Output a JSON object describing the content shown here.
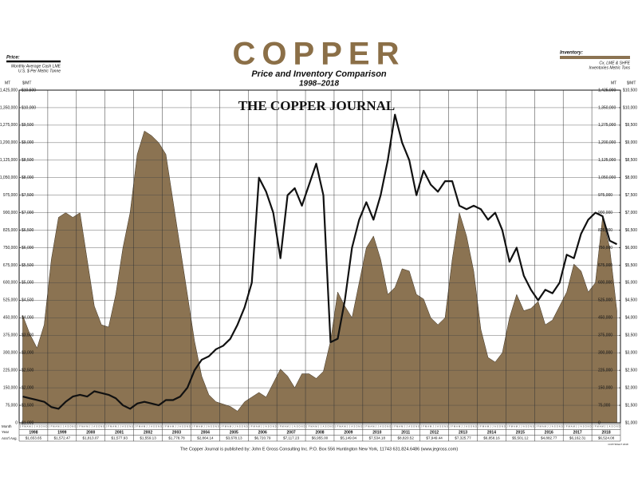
{
  "chart_data": {
    "type": "line",
    "title": "COPPER",
    "subtitle": "Price and Inventory Comparison",
    "period": "1998–2018",
    "watermark": "THE COPPER JOURNAL",
    "price_legend": [
      "Monthly Average Cash LME",
      "U.S. $ Per Metric Tonne"
    ],
    "inventory_legend": [
      "Cx, LME & SHFE",
      "Inventories Metric Tons"
    ],
    "y_axis_label": "MT",
    "y2_axis_label": "$/MT",
    "row_labels": [
      "Month",
      "Year",
      "Ann'l Avg."
    ],
    "footer": "The Copper Journal is published by: John E Gross Consulting Inc.  P.O. Box 556 Huntington New York, 11743  631.824.6486  (www.jegross.com)",
    "copyright": "COPYRIGHT 2018",
    "months": [
      "J",
      "F",
      "M",
      "A",
      "M",
      "J",
      "J",
      "A",
      "S",
      "O",
      "N",
      "D"
    ],
    "years": [
      "1998",
      "1999",
      "2000",
      "2001",
      "2002",
      "2003",
      "2004",
      "2005",
      "2006",
      "2007",
      "2008",
      "2009",
      "2010",
      "2011",
      "2012",
      "2013",
      "2014",
      "2015",
      "2016",
      "2017",
      "2018"
    ],
    "annual_avg": [
      "$1,653.65",
      "$1,572.47",
      "$1,813.07",
      "$1,577.93",
      "$1,559.13",
      "$1,778.78",
      "$2,864.14",
      "$3,678.13",
      "$6,720.79",
      "$7,117.23",
      "$6,955.00",
      "$5,149.04",
      "$7,534.18",
      "$8,820.52",
      "$7,949.44",
      "$7,325.77",
      "$6,858.16",
      "$5,501.12",
      "$4,882.77",
      "$6,162.31",
      "$6,524.08"
    ],
    "xlim": [
      1998,
      2019
    ],
    "x": [
      1998.125,
      1998.375,
      1998.625,
      1998.875,
      1999.125,
      1999.375,
      1999.625,
      1999.875,
      2000.125,
      2000.375,
      2000.625,
      2000.875,
      2001.125,
      2001.375,
      2001.625,
      2001.875,
      2002.125,
      2002.375,
      2002.625,
      2002.875,
      2003.125,
      2003.375,
      2003.625,
      2003.875,
      2004.125,
      2004.375,
      2004.625,
      2004.875,
      2005.125,
      2005.375,
      2005.625,
      2005.875,
      2006.125,
      2006.375,
      2006.625,
      2006.875,
      2007.125,
      2007.375,
      2007.625,
      2007.875,
      2008.125,
      2008.375,
      2008.625,
      2008.875,
      2009.125,
      2009.375,
      2009.625,
      2009.875,
      2010.125,
      2010.375,
      2010.625,
      2010.875,
      2011.125,
      2011.375,
      2011.625,
      2011.875,
      2012.125,
      2012.375,
      2012.625,
      2012.875,
      2013.125,
      2013.375,
      2013.625,
      2013.875,
      2014.125,
      2014.375,
      2014.625,
      2014.875,
      2015.125,
      2015.375,
      2015.625,
      2015.875,
      2016.125,
      2016.375,
      2016.625,
      2016.875,
      2017.125,
      2017.375,
      2017.625,
      2017.875,
      2018.125,
      2018.375,
      2018.625,
      2018.875
    ],
    "ylim": [
      0,
      1425000
    ],
    "yticks": [
      0,
      {
        "value": 75000,
        "label": "75,000"
      },
      {
        "value": 150000,
        "label": "150,000"
      },
      {
        "value": 225000,
        "label": "225,000"
      },
      {
        "value": 300000,
        "label": "300,000"
      },
      {
        "value": 375000,
        "label": "375,000"
      },
      {
        "value": 450000,
        "label": "450,000"
      },
      {
        "value": 525000,
        "label": "525,000"
      },
      {
        "value": 600000,
        "label": "600,000"
      },
      {
        "value": 675000,
        "label": "675,000"
      },
      {
        "value": 750000,
        "label": "750,000"
      },
      {
        "value": 825000,
        "label": "825,000"
      },
      {
        "value": 900000,
        "label": "900,000"
      },
      {
        "value": 975000,
        "label": "975,000"
      },
      {
        "value": 1050000,
        "label": "1,050,000"
      },
      {
        "value": 1125000,
        "label": "1,125,000"
      },
      {
        "value": 1200000,
        "label": "1,200,000"
      },
      {
        "value": 1275000,
        "label": "1,275,000"
      },
      {
        "value": 1350000,
        "label": "1,350,000"
      },
      {
        "value": 1425000,
        "label": "1,425,000"
      }
    ],
    "y2lim": [
      1000,
      10500
    ],
    "y2ticks": [
      {
        "value": 1000,
        "label": "$1,000"
      },
      {
        "value": 1500,
        "label": "$1,500"
      },
      {
        "value": 2000,
        "label": "$2,000"
      },
      {
        "value": 2500,
        "label": "$2,500"
      },
      {
        "value": 3000,
        "label": "$3,000"
      },
      {
        "value": 3500,
        "label": "$3,500"
      },
      {
        "value": 4000,
        "label": "$4,000"
      },
      {
        "value": 4500,
        "label": "$4,500"
      },
      {
        "value": 5000,
        "label": "$5,000"
      },
      {
        "value": 5500,
        "label": "$5,500"
      },
      {
        "value": 6000,
        "label": "$6,000"
      },
      {
        "value": 6500,
        "label": "$6,500"
      },
      {
        "value": 7000,
        "label": "$7,000"
      },
      {
        "value": 7500,
        "label": "$7,500"
      },
      {
        "value": 8000,
        "label": "$8,000"
      },
      {
        "value": 8500,
        "label": "$8,500"
      },
      {
        "value": 9000,
        "label": "$9,000"
      },
      {
        "value": 9500,
        "label": "$9,500"
      },
      {
        "value": 10000,
        "label": "$10,000"
      },
      {
        "value": 10500,
        "label": "$10,500"
      }
    ],
    "grid": true,
    "series": [
      {
        "name": "Price:",
        "color": "#111111",
        "axis": "y2",
        "values": [
          1750,
          1700,
          1650,
          1600,
          1450,
          1400,
          1600,
          1750,
          1800,
          1750,
          1900,
          1850,
          1800,
          1700,
          1500,
          1400,
          1550,
          1600,
          1550,
          1500,
          1650,
          1650,
          1750,
          2000,
          2500,
          2800,
          2900,
          3100,
          3200,
          3400,
          3800,
          4300,
          5000,
          8000,
          7600,
          7000,
          5700,
          7500,
          7700,
          7200,
          7800,
          8400,
          7500,
          3300,
          3400,
          4500,
          6000,
          6800,
          7300,
          6800,
          7500,
          8500,
          9800,
          9000,
          8500,
          7500,
          8200,
          7800,
          7600,
          7900,
          7900,
          7200,
          7100,
          7200,
          7100,
          6800,
          7000,
          6500,
          5600,
          6000,
          5200,
          4800,
          4500,
          4800,
          4700,
          5000,
          5800,
          5700,
          6400,
          6800,
          7000,
          6900,
          6200,
          6100
        ]
      },
      {
        "name": "Inventory:",
        "color": "#8b7352",
        "axis": "y",
        "values": [
          460000,
          380000,
          320000,
          420000,
          700000,
          880000,
          900000,
          880000,
          900000,
          700000,
          500000,
          420000,
          410000,
          550000,
          750000,
          900000,
          1150000,
          1250000,
          1230000,
          1200000,
          1150000,
          950000,
          750000,
          550000,
          350000,
          200000,
          120000,
          90000,
          80000,
          70000,
          50000,
          90000,
          110000,
          130000,
          110000,
          170000,
          230000,
          200000,
          150000,
          210000,
          210000,
          190000,
          220000,
          350000,
          560000,
          500000,
          450000,
          600000,
          750000,
          800000,
          700000,
          550000,
          580000,
          660000,
          650000,
          550000,
          530000,
          450000,
          420000,
          450000,
          700000,
          900000,
          800000,
          650000,
          400000,
          280000,
          260000,
          300000,
          450000,
          550000,
          480000,
          490000,
          520000,
          420000,
          440000,
          500000,
          560000,
          680000,
          650000,
          560000,
          600000,
          880000,
          750000,
          480000
        ]
      }
    ]
  }
}
